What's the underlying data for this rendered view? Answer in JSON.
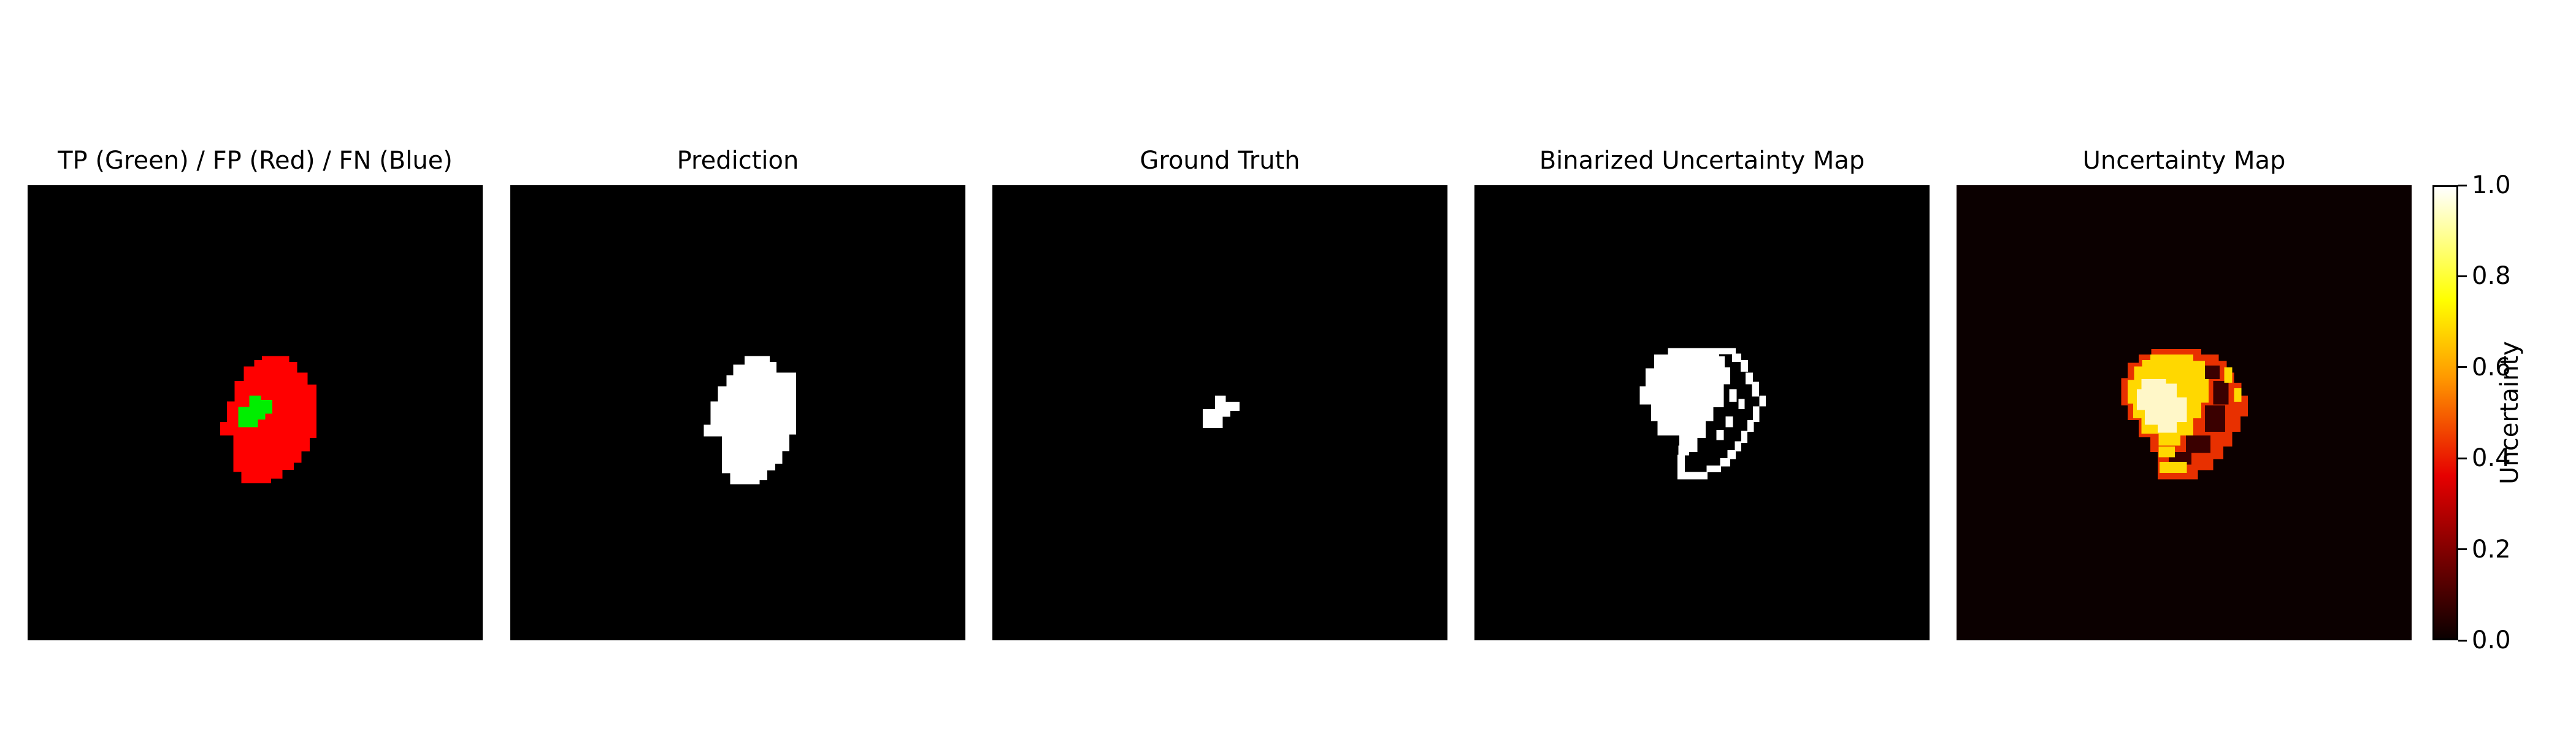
{
  "figure": {
    "panels": [
      {
        "title": "TP (Green) / FP (Red) / FN (Blue)",
        "image": "tp-fp-fn-overlay"
      },
      {
        "title": "Prediction",
        "image": "binary-prediction-mask"
      },
      {
        "title": "Ground Truth",
        "image": "binary-ground-truth-mask"
      },
      {
        "title": "Binarized Uncertainty Map",
        "image": "binary-uncertainty-mask"
      },
      {
        "title": "Uncertainty Map",
        "image": "hot-colormap-uncertainty"
      }
    ],
    "colorbar": {
      "label": "Uncertainty",
      "colormap": "hot",
      "min": 0.0,
      "max": 1.0,
      "ticks": [
        "0.0",
        "0.2",
        "0.4",
        "0.6",
        "0.8",
        "1.0"
      ]
    },
    "colors": {
      "background": "#000000",
      "true_positive": "#00ee00",
      "false_positive": "#ff0000",
      "false_negative": "#0000ff",
      "mask": "#ffffff",
      "uncertainty_low": "#0b0000"
    }
  }
}
